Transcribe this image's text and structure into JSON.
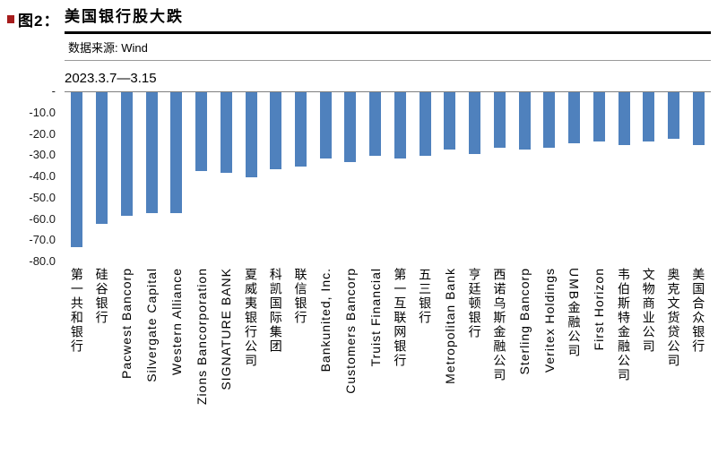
{
  "header": {
    "figure_label": "图2：",
    "title": "美国银行股大跌",
    "source": "数据来源: Wind"
  },
  "colors": {
    "bar": "#4f81bd",
    "accent_mark": "#a61c1c",
    "axis_line": "#7f7f7f",
    "title_rule": "#000000"
  },
  "chart_data": {
    "type": "bar",
    "title": "2023.3.7—3.15",
    "categories": [
      "第一共和银行",
      "硅谷银行",
      "Pacwest Bancorp",
      "Silvergate Capital",
      "Western Alliance",
      "Zions Bancorporation",
      "SIGNATURE BANK",
      "夏威夷银行公司",
      "科凯国际集团",
      "联信银行",
      "Bankunited, Inc.",
      "Customers Bancorp",
      "Truist Financial",
      "第一互联网银行",
      "五三银行",
      "Metropolitan Bank",
      "亨廷顿银行",
      "西诺乌斯金融公司",
      "Sterling Bancorp",
      "Veritex Holdings",
      "UMB金融公司",
      "First Horizon",
      "韦伯斯特金融公司",
      "文物商业公司",
      "奥克文货贷公司",
      "美国合众银行"
    ],
    "values": [
      -73,
      -62,
      -58,
      -57,
      -57,
      -37,
      -38,
      -40,
      -36,
      -35,
      -31,
      -33,
      -30,
      -31,
      -30,
      -27,
      -29,
      -26,
      -27,
      -26,
      -24,
      -23,
      -25,
      -23,
      -22,
      -25
    ],
    "ylim": [
      -80,
      0
    ],
    "ytick_step": 10,
    "ytick_labels": [
      "-",
      "-10.0",
      "-20.0",
      "-30.0",
      "-40.0",
      "-50.0",
      "-60.0",
      "-70.0",
      "-80.0"
    ],
    "grid": false,
    "legend": false,
    "xlabel": "",
    "ylabel": ""
  }
}
